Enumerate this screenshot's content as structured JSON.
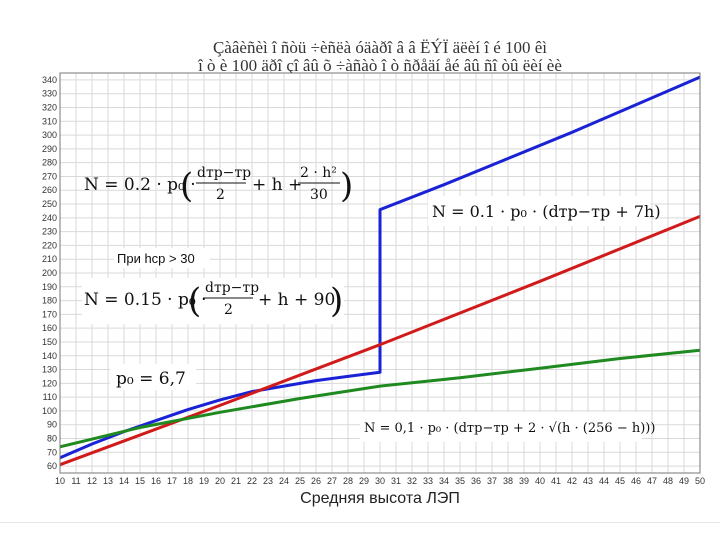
{
  "chart_data": {
    "type": "line",
    "title_line1": "Çàâèñèì î ñòü ÷èñëà óäàðî â â ËÝÏ äëèí î é 100 êì",
    "title_line2": "î ò è 100 äðî çî âû õ ÷àñàò î ò ñðåäí åé âû ñî òû ëèí èè",
    "xlabel": "Средняя высота ЛЭП",
    "ylabel": "",
    "xlim": [
      10,
      50
    ],
    "ylim": [
      55,
      345
    ],
    "xticks": [
      10,
      11,
      12,
      13,
      14,
      15,
      16,
      17,
      18,
      19,
      20,
      21,
      22,
      23,
      24,
      25,
      26,
      27,
      28,
      29,
      30,
      31,
      32,
      33,
      34,
      35,
      36,
      37,
      38,
      39,
      40,
      41,
      42,
      43,
      44,
      45,
      46,
      47,
      48,
      49,
      50
    ],
    "xtick_labels": [
      "10",
      "11",
      "12",
      "13",
      "14",
      "15",
      "16",
      "17",
      "18",
      "19",
      "20",
      "21",
      "22",
      "23",
      "24",
      "25",
      "26",
      "27",
      "28",
      "29",
      "30",
      "31",
      "32",
      "33",
      "34",
      "35",
      "36",
      "37",
      "38",
      "39",
      "40",
      "41",
      "42",
      "43",
      "44",
      "45",
      "46",
      "47",
      "48",
      "49",
      "50"
    ],
    "yticks": [
      60,
      70,
      80,
      90,
      100,
      110,
      120,
      130,
      140,
      150,
      160,
      170,
      180,
      190,
      200,
      210,
      220,
      230,
      240,
      250,
      260,
      270,
      280,
      290,
      300,
      310,
      320,
      330,
      340
    ],
    "ytick_labels": [
      "60",
      "70",
      "80",
      "90",
      "100",
      "110",
      "120",
      "130",
      "140",
      "150",
      "160",
      "170",
      "180",
      "190",
      "200",
      "210",
      "220",
      "230",
      "240",
      "250",
      "260",
      "270",
      "280",
      "290",
      "300",
      "310",
      "320",
      "330",
      "340"
    ],
    "grid": true,
    "series": [
      {
        "color": "#1a22d6",
        "x": [
          10,
          12,
          14,
          16,
          18,
          20,
          22,
          24,
          26,
          28,
          30,
          30,
          34,
          38,
          42,
          46,
          50
        ],
        "y": [
          66,
          76,
          85,
          93,
          101,
          108,
          114,
          118,
          122,
          125,
          128,
          246,
          264,
          283,
          302,
          322,
          342
        ]
      },
      {
        "color": "#d11a1a",
        "x": [
          10,
          20,
          30,
          40,
          50
        ],
        "y": [
          61,
          104,
          148,
          194,
          241
        ]
      },
      {
        "color": "#1f8a1f",
        "x": [
          10,
          15,
          20,
          25,
          30,
          35,
          40,
          45,
          50
        ],
        "y": [
          74,
          88,
          99,
          109,
          118,
          124,
          131,
          138,
          144
        ]
      }
    ],
    "annotations": {
      "f1_n": "N = 0.2 · p₀ · ",
      "f1_num": "dтр−тр",
      "f1_den": "2",
      "f1_mid": "+ h +",
      "f1_num2": "2 · h²",
      "f1_den2": "30",
      "f2": "N = 0.1 · p₀ · (dтр−тр + 7h)",
      "cond": "При hср > 30",
      "f3_n": "N = 0.15 · p₀ · ",
      "f3_num": "dтр−тр",
      "f3_den": "2",
      "f3_tail": "+ h + 90",
      "p0": "p₀ = 6,7",
      "f4": "N = 0,1 · p₀ · (dтр−тр + 2 · √(h · (256 − h)))"
    }
  }
}
